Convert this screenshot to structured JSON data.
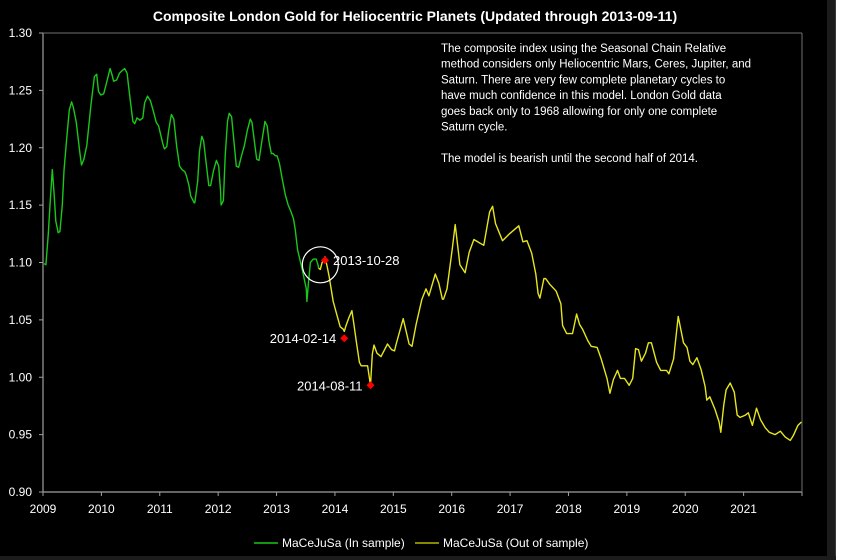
{
  "chart_data": {
    "type": "line",
    "title": "Composite London Gold for Heliocentric Planets (Updated through 2013-09-11)",
    "xlabel": "",
    "ylabel": "",
    "xlim": [
      2009,
      2022
    ],
    "ylim": [
      0.9,
      1.3
    ],
    "grid": false,
    "x_ticks": [
      "2009",
      "2010",
      "2011",
      "2012",
      "2013",
      "2014",
      "2015",
      "2016",
      "2017",
      "2018",
      "2019",
      "2020",
      "2021"
    ],
    "y_ticks": [
      "1.30",
      "1.25",
      "1.20",
      "1.15",
      "1.10",
      "1.05",
      "1.00",
      "0.95",
      "0.90"
    ],
    "y_tick_values": [
      1.3,
      1.25,
      1.2,
      1.15,
      1.1,
      1.05,
      1.0,
      0.95,
      0.9
    ],
    "legend_position": "bottom",
    "colors": {
      "in_sample": "#19c819",
      "out_of_sample": "#e6e61e",
      "marker": "#ff0000",
      "axis": "#a0a0a0",
      "background": "#000000"
    },
    "series": [
      {
        "name": "MaCeJuSa (In sample)",
        "points": [
          [
            2009.02,
            1.099
          ],
          [
            2009.05,
            1.098
          ],
          [
            2009.09,
            1.125
          ],
          [
            2009.12,
            1.15
          ],
          [
            2009.16,
            1.181
          ],
          [
            2009.19,
            1.16
          ],
          [
            2009.22,
            1.136
          ],
          [
            2009.26,
            1.126
          ],
          [
            2009.29,
            1.127
          ],
          [
            2009.33,
            1.15
          ],
          [
            2009.36,
            1.18
          ],
          [
            2009.4,
            1.205
          ],
          [
            2009.45,
            1.233
          ],
          [
            2009.49,
            1.24
          ],
          [
            2009.52,
            1.235
          ],
          [
            2009.57,
            1.222
          ],
          [
            2009.63,
            1.196
          ],
          [
            2009.66,
            1.185
          ],
          [
            2009.7,
            1.19
          ],
          [
            2009.75,
            1.202
          ],
          [
            2009.82,
            1.237
          ],
          [
            2009.88,
            1.262
          ],
          [
            2009.92,
            1.264
          ],
          [
            2009.95,
            1.249
          ],
          [
            2009.99,
            1.246
          ],
          [
            2010.04,
            1.247
          ],
          [
            2010.08,
            1.255
          ],
          [
            2010.15,
            1.269
          ],
          [
            2010.18,
            1.264
          ],
          [
            2010.21,
            1.258
          ],
          [
            2010.26,
            1.259
          ],
          [
            2010.31,
            1.265
          ],
          [
            2010.35,
            1.267
          ],
          [
            2010.4,
            1.269
          ],
          [
            2010.44,
            1.265
          ],
          [
            2010.47,
            1.252
          ],
          [
            2010.5,
            1.239
          ],
          [
            2010.54,
            1.223
          ],
          [
            2010.57,
            1.221
          ],
          [
            2010.61,
            1.226
          ],
          [
            2010.66,
            1.224
          ],
          [
            2010.71,
            1.226
          ],
          [
            2010.74,
            1.239
          ],
          [
            2010.79,
            1.245
          ],
          [
            2010.84,
            1.241
          ],
          [
            2010.89,
            1.232
          ],
          [
            2010.94,
            1.222
          ],
          [
            2010.98,
            1.219
          ],
          [
            2011.05,
            1.204
          ],
          [
            2011.08,
            1.199
          ],
          [
            2011.12,
            1.201
          ],
          [
            2011.15,
            1.214
          ],
          [
            2011.19,
            1.227
          ],
          [
            2011.2,
            1.229
          ],
          [
            2011.24,
            1.225
          ],
          [
            2011.29,
            1.201
          ],
          [
            2011.34,
            1.184
          ],
          [
            2011.38,
            1.181
          ],
          [
            2011.43,
            1.179
          ],
          [
            2011.46,
            1.175
          ],
          [
            2011.5,
            1.167
          ],
          [
            2011.53,
            1.158
          ],
          [
            2011.59,
            1.152
          ],
          [
            2011.6,
            1.152
          ],
          [
            2011.65,
            1.171
          ],
          [
            2011.68,
            1.197
          ],
          [
            2011.72,
            1.21
          ],
          [
            2011.75,
            1.206
          ],
          [
            2011.8,
            1.184
          ],
          [
            2011.84,
            1.167
          ],
          [
            2011.87,
            1.167
          ],
          [
            2011.92,
            1.18
          ],
          [
            2011.97,
            1.189
          ],
          [
            2012.01,
            1.184
          ],
          [
            2012.04,
            1.163
          ],
          [
            2012.05,
            1.15
          ],
          [
            2012.09,
            1.154
          ],
          [
            2012.12,
            1.193
          ],
          [
            2012.16,
            1.223
          ],
          [
            2012.19,
            1.23
          ],
          [
            2012.23,
            1.227
          ],
          [
            2012.27,
            1.206
          ],
          [
            2012.31,
            1.184
          ],
          [
            2012.35,
            1.183
          ],
          [
            2012.4,
            1.193
          ],
          [
            2012.45,
            1.202
          ],
          [
            2012.5,
            1.215
          ],
          [
            2012.55,
            1.225
          ],
          [
            2012.58,
            1.222
          ],
          [
            2012.63,
            1.202
          ],
          [
            2012.66,
            1.19
          ],
          [
            2012.7,
            1.189
          ],
          [
            2012.75,
            1.206
          ],
          [
            2012.79,
            1.219
          ],
          [
            2012.8,
            1.223
          ],
          [
            2012.84,
            1.219
          ],
          [
            2012.87,
            1.206
          ],
          [
            2012.91,
            1.195
          ],
          [
            2012.94,
            1.195
          ],
          [
            2012.98,
            1.193
          ],
          [
            2013.01,
            1.193
          ],
          [
            2013.05,
            1.186
          ],
          [
            2013.1,
            1.172
          ],
          [
            2013.15,
            1.159
          ],
          [
            2013.2,
            1.15
          ],
          [
            2013.25,
            1.144
          ],
          [
            2013.29,
            1.138
          ],
          [
            2013.32,
            1.129
          ],
          [
            2013.36,
            1.111
          ],
          [
            2013.44,
            1.094
          ],
          [
            2013.51,
            1.077
          ],
          [
            2013.52,
            1.066
          ],
          [
            2013.55,
            1.084
          ],
          [
            2013.58,
            1.1
          ],
          [
            2013.63,
            1.103
          ],
          [
            2013.68,
            1.103
          ],
          [
            2013.71,
            1.098
          ],
          [
            2013.72,
            1.095
          ]
        ]
      },
      {
        "name": "MaCeJuSa (Out of sample)",
        "points": [
          [
            2013.72,
            1.095
          ],
          [
            2013.75,
            1.094
          ],
          [
            2013.78,
            1.1
          ],
          [
            2013.82,
            1.103
          ],
          [
            2013.83,
            1.105
          ],
          [
            2013.87,
            1.096
          ],
          [
            2013.9,
            1.088
          ],
          [
            2013.97,
            1.066
          ],
          [
            2014.04,
            1.053
          ],
          [
            2014.09,
            1.044
          ],
          [
            2014.14,
            1.042
          ],
          [
            2014.16,
            1.04
          ],
          [
            2014.19,
            1.045
          ],
          [
            2014.24,
            1.052
          ],
          [
            2014.29,
            1.058
          ],
          [
            2014.32,
            1.048
          ],
          [
            2014.37,
            1.03
          ],
          [
            2014.42,
            1.013
          ],
          [
            2014.45,
            1.01
          ],
          [
            2014.5,
            1.01
          ],
          [
            2014.56,
            1.01
          ],
          [
            2014.61,
            0.993
          ],
          [
            2014.64,
            1.02
          ],
          [
            2014.67,
            1.028
          ],
          [
            2014.72,
            1.021
          ],
          [
            2014.79,
            1.018
          ],
          [
            2014.9,
            1.029
          ],
          [
            2014.97,
            1.024
          ],
          [
            2015.02,
            1.023
          ],
          [
            2015.05,
            1.029
          ],
          [
            2015.17,
            1.051
          ],
          [
            2015.27,
            1.029
          ],
          [
            2015.32,
            1.027
          ],
          [
            2015.39,
            1.046
          ],
          [
            2015.49,
            1.068
          ],
          [
            2015.56,
            1.077
          ],
          [
            2015.61,
            1.071
          ],
          [
            2015.72,
            1.09
          ],
          [
            2015.78,
            1.082
          ],
          [
            2015.84,
            1.068
          ],
          [
            2015.86,
            1.068
          ],
          [
            2015.92,
            1.077
          ],
          [
            2016.01,
            1.112
          ],
          [
            2016.06,
            1.133
          ],
          [
            2016.14,
            1.098
          ],
          [
            2016.23,
            1.091
          ],
          [
            2016.3,
            1.109
          ],
          [
            2016.38,
            1.12
          ],
          [
            2016.48,
            1.117
          ],
          [
            2016.55,
            1.115
          ],
          [
            2016.65,
            1.144
          ],
          [
            2016.7,
            1.149
          ],
          [
            2016.75,
            1.134
          ],
          [
            2016.87,
            1.119
          ],
          [
            2016.99,
            1.125
          ],
          [
            2017.15,
            1.132
          ],
          [
            2017.22,
            1.118
          ],
          [
            2017.29,
            1.119
          ],
          [
            2017.37,
            1.108
          ],
          [
            2017.44,
            1.09
          ],
          [
            2017.48,
            1.073
          ],
          [
            2017.51,
            1.069
          ],
          [
            2017.58,
            1.086
          ],
          [
            2017.61,
            1.086
          ],
          [
            2017.68,
            1.081
          ],
          [
            2017.79,
            1.075
          ],
          [
            2017.87,
            1.064
          ],
          [
            2017.9,
            1.045
          ],
          [
            2017.97,
            1.038
          ],
          [
            2018.02,
            1.038
          ],
          [
            2018.07,
            1.038
          ],
          [
            2018.14,
            1.055
          ],
          [
            2018.19,
            1.046
          ],
          [
            2018.24,
            1.042
          ],
          [
            2018.33,
            1.032
          ],
          [
            2018.39,
            1.027
          ],
          [
            2018.49,
            1.026
          ],
          [
            2018.56,
            1.016
          ],
          [
            2018.66,
            0.999
          ],
          [
            2018.71,
            0.986
          ],
          [
            2018.77,
            0.998
          ],
          [
            2018.84,
            1.006
          ],
          [
            2018.89,
            0.999
          ],
          [
            2018.96,
            0.999
          ],
          [
            2019.04,
            0.993
          ],
          [
            2019.1,
            0.999
          ],
          [
            2019.15,
            1.025
          ],
          [
            2019.2,
            1.024
          ],
          [
            2019.25,
            1.014
          ],
          [
            2019.32,
            1.021
          ],
          [
            2019.37,
            1.03
          ],
          [
            2019.42,
            1.03
          ],
          [
            2019.51,
            1.013
          ],
          [
            2019.58,
            1.006
          ],
          [
            2019.68,
            1.006
          ],
          [
            2019.72,
            1.003
          ],
          [
            2019.8,
            1.016
          ],
          [
            2019.88,
            1.053
          ],
          [
            2019.97,
            1.03
          ],
          [
            2020.03,
            1.026
          ],
          [
            2020.08,
            1.014
          ],
          [
            2020.13,
            1.011
          ],
          [
            2020.2,
            1.017
          ],
          [
            2020.27,
            1.007
          ],
          [
            2020.34,
            0.992
          ],
          [
            2020.37,
            0.98
          ],
          [
            2020.42,
            0.983
          ],
          [
            2020.51,
            0.972
          ],
          [
            2020.58,
            0.961
          ],
          [
            2020.61,
            0.952
          ],
          [
            2020.66,
            0.976
          ],
          [
            2020.7,
            0.989
          ],
          [
            2020.77,
            0.995
          ],
          [
            2020.84,
            0.987
          ],
          [
            2020.89,
            0.967
          ],
          [
            2020.94,
            0.965
          ],
          [
            2021.03,
            0.967
          ],
          [
            2021.08,
            0.969
          ],
          [
            2021.15,
            0.958
          ],
          [
            2021.22,
            0.973
          ],
          [
            2021.29,
            0.963
          ],
          [
            2021.37,
            0.956
          ],
          [
            2021.44,
            0.952
          ],
          [
            2021.54,
            0.95
          ],
          [
            2021.63,
            0.953
          ],
          [
            2021.71,
            0.948
          ],
          [
            2021.8,
            0.945
          ],
          [
            2021.85,
            0.949
          ],
          [
            2021.93,
            0.958
          ],
          [
            2021.99,
            0.961
          ]
        ]
      }
    ],
    "markers": [
      {
        "label": "2013-10-28",
        "x": 2013.83,
        "y": 1.102,
        "label_side": "right"
      },
      {
        "label": "2014-02-14",
        "x": 2014.16,
        "y": 1.034,
        "label_side": "left"
      },
      {
        "label": "2014-08-11",
        "x": 2014.61,
        "y": 0.993,
        "label_side": "left"
      }
    ],
    "circle_annotation": {
      "x": 2013.75,
      "y": 1.098
    },
    "annotation_text": [
      "The composite index using the Seasonal Chain Relative",
      "method considers only Heliocentric Mars, Ceres, Jupiter, and",
      "Saturn.  There are very few complete planetary cycles to",
      "have much confidence in this model.  London Gold data",
      "goes back only to 1968 allowing for only one complete",
      "Saturn cycle.",
      "",
      "The model is bearish until the second half of 2014."
    ]
  }
}
